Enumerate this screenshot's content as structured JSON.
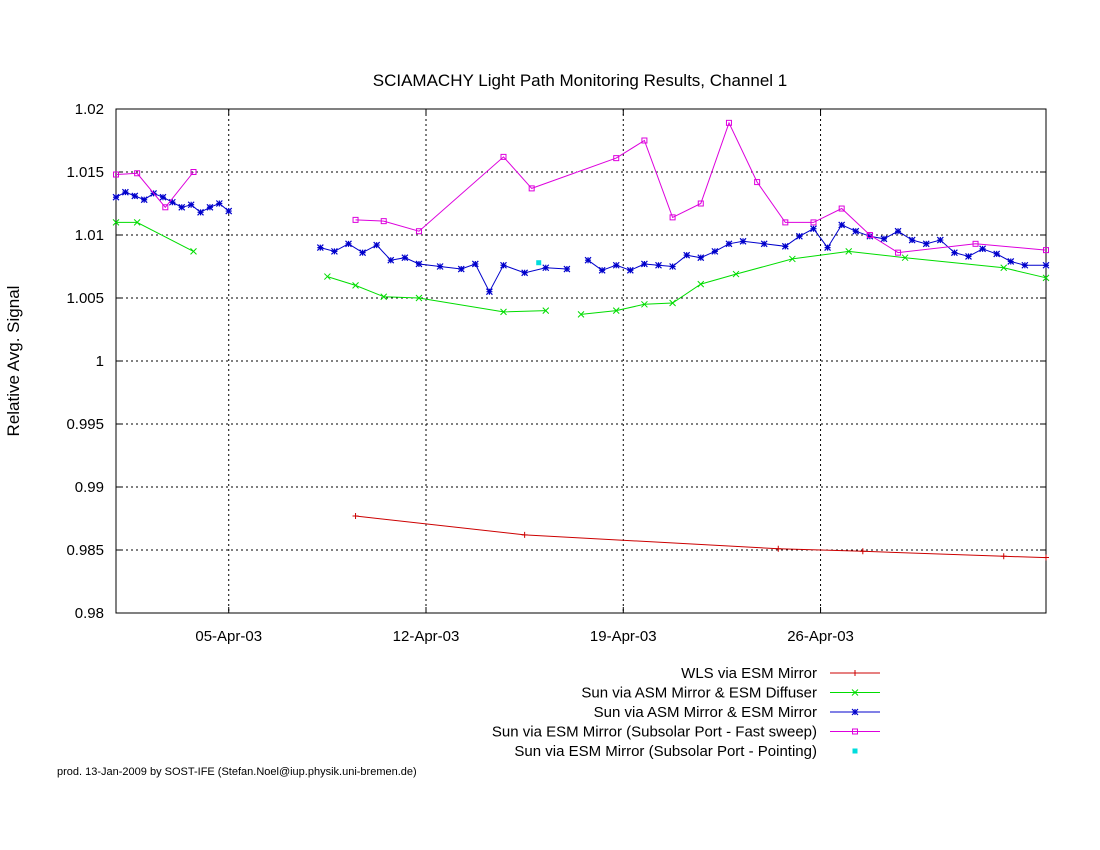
{
  "chart_data": {
    "type": "line",
    "title": "SCIAMACHY Light Path Monitoring Results, Channel 1",
    "xlabel": "",
    "ylabel": "Relative Avg. Signal",
    "x_axis": "date (year 2003)",
    "xlim": [
      "2003-04-01",
      "2003-05-04"
    ],
    "ylim": [
      0.98,
      1.02
    ],
    "y_ticks": [
      0.98,
      0.985,
      0.99,
      0.995,
      1,
      1.005,
      1.01,
      1.015,
      1.02
    ],
    "y_tick_labels": [
      "0.98",
      "0.985",
      "0.99",
      "0.995",
      "1",
      "1.005",
      "1.01",
      "1.015",
      "1.02"
    ],
    "x_ticks": [
      "2003-04-05",
      "2003-04-12",
      "2003-04-19",
      "2003-04-26"
    ],
    "x_tick_labels": [
      "05-Apr-03",
      "12-Apr-03",
      "19-Apr-03",
      "26-Apr-03"
    ],
    "grid": true,
    "legend_position": "below plot, right-aligned",
    "series": [
      {
        "name": "WLS via ESM Mirror",
        "color": "#cc0000",
        "marker": "plus",
        "segments": [
          [
            [
              "2003-04-09T12:00",
              0.9877
            ],
            [
              "2003-04-15T12:00",
              0.9862
            ],
            [
              "2003-04-24T12:00",
              0.9851
            ],
            [
              "2003-04-27T12:00",
              0.9849
            ],
            [
              "2003-05-02T12:00",
              0.9845
            ],
            [
              "2003-05-04T00:00",
              0.9844
            ]
          ]
        ]
      },
      {
        "name": "Sun via ASM Mirror & ESM Diffuser",
        "color": "#00dd00",
        "marker": "x",
        "segments": [
          [
            [
              "2003-04-01T00:00",
              1.011
            ],
            [
              "2003-04-01T18:00",
              1.011
            ],
            [
              "2003-04-03T18:00",
              1.0087
            ]
          ],
          [
            [
              "2003-04-08T12:00",
              1.0067
            ],
            [
              "2003-04-09T12:00",
              1.006
            ],
            [
              "2003-04-10T12:00",
              1.0051
            ],
            [
              "2003-04-11T18:00",
              1.005
            ],
            [
              "2003-04-14T18:00",
              1.0039
            ],
            [
              "2003-04-16T06:00",
              1.004
            ]
          ],
          [
            [
              "2003-04-17T12:00",
              1.0037
            ],
            [
              "2003-04-18T18:00",
              1.004
            ],
            [
              "2003-04-19T18:00",
              1.0045
            ],
            [
              "2003-04-20T18:00",
              1.0046
            ],
            [
              "2003-04-21T18:00",
              1.0061
            ],
            [
              "2003-04-23T00:00",
              1.0069
            ],
            [
              "2003-04-25T00:00",
              1.0081
            ],
            [
              "2003-04-27T00:00",
              1.0087
            ],
            [
              "2003-04-29T00:00",
              1.0082
            ],
            [
              "2003-05-02T12:00",
              1.0074
            ],
            [
              "2003-05-04T00:00",
              1.0066
            ]
          ]
        ]
      },
      {
        "name": "Sun via ASM Mirror & ESM Mirror",
        "color": "#0000cc",
        "marker": "star",
        "segments": [
          [
            [
              "2003-04-01T00:00",
              1.013
            ],
            [
              "2003-04-01T08:00",
              1.0134
            ],
            [
              "2003-04-01T16:00",
              1.0131
            ],
            [
              "2003-04-02T00:00",
              1.0128
            ],
            [
              "2003-04-02T08:00",
              1.0133
            ],
            [
              "2003-04-02T16:00",
              1.013
            ],
            [
              "2003-04-03T00:00",
              1.0126
            ],
            [
              "2003-04-03T08:00",
              1.0122
            ],
            [
              "2003-04-03T16:00",
              1.0124
            ],
            [
              "2003-04-04T00:00",
              1.0118
            ],
            [
              "2003-04-04T08:00",
              1.0122
            ],
            [
              "2003-04-04T16:00",
              1.0125
            ],
            [
              "2003-04-05T00:00",
              1.0119
            ]
          ],
          [
            [
              "2003-04-08T06:00",
              1.009
            ],
            [
              "2003-04-08T18:00",
              1.0087
            ],
            [
              "2003-04-09T06:00",
              1.0093
            ],
            [
              "2003-04-09T18:00",
              1.0086
            ],
            [
              "2003-04-10T06:00",
              1.0092
            ],
            [
              "2003-04-10T18:00",
              1.008
            ],
            [
              "2003-04-11T06:00",
              1.0082
            ],
            [
              "2003-04-11T18:00",
              1.0077
            ],
            [
              "2003-04-12T12:00",
              1.0075
            ],
            [
              "2003-04-13T06:00",
              1.0073
            ],
            [
              "2003-04-13T18:00",
              1.0077
            ],
            [
              "2003-04-14T06:00",
              1.0055
            ],
            [
              "2003-04-14T18:00",
              1.0076
            ],
            [
              "2003-04-15T12:00",
              1.007
            ],
            [
              "2003-04-16T06:00",
              1.0074
            ],
            [
              "2003-04-17T00:00",
              1.0073
            ]
          ],
          [
            [
              "2003-04-17T18:00",
              1.008
            ],
            [
              "2003-04-18T06:00",
              1.0072
            ],
            [
              "2003-04-18T18:00",
              1.0076
            ],
            [
              "2003-04-19T06:00",
              1.0072
            ],
            [
              "2003-04-19T18:00",
              1.0077
            ],
            [
              "2003-04-20T06:00",
              1.0076
            ],
            [
              "2003-04-20T18:00",
              1.0075
            ],
            [
              "2003-04-21T06:00",
              1.0084
            ],
            [
              "2003-04-21T18:00",
              1.0082
            ],
            [
              "2003-04-22T06:00",
              1.0087
            ],
            [
              "2003-04-22T18:00",
              1.0093
            ],
            [
              "2003-04-23T06:00",
              1.0095
            ],
            [
              "2003-04-24T00:00",
              1.0093
            ],
            [
              "2003-04-24T18:00",
              1.0091
            ],
            [
              "2003-04-25T06:00",
              1.0099
            ],
            [
              "2003-04-25T18:00",
              1.0105
            ],
            [
              "2003-04-26T06:00",
              1.009
            ],
            [
              "2003-04-26T18:00",
              1.0108
            ],
            [
              "2003-04-27T06:00",
              1.0103
            ],
            [
              "2003-04-27T18:00",
              1.0099
            ],
            [
              "2003-04-28T06:00",
              1.0097
            ],
            [
              "2003-04-28T18:00",
              1.0103
            ],
            [
              "2003-04-29T06:00",
              1.0096
            ],
            [
              "2003-04-29T18:00",
              1.0093
            ],
            [
              "2003-04-30T06:00",
              1.0096
            ],
            [
              "2003-04-30T18:00",
              1.0086
            ],
            [
              "2003-05-01T06:00",
              1.0083
            ],
            [
              "2003-05-01T18:00",
              1.0089
            ],
            [
              "2003-05-02T06:00",
              1.0085
            ],
            [
              "2003-05-02T18:00",
              1.0079
            ],
            [
              "2003-05-03T06:00",
              1.0076
            ],
            [
              "2003-05-04T00:00",
              1.0076
            ]
          ]
        ]
      },
      {
        "name": "Sun via ESM Mirror (Subsolar Port - Fast sweep)",
        "color": "#dd00dd",
        "marker": "open-square",
        "segments": [
          [
            [
              "2003-04-01T00:00",
              1.0148
            ],
            [
              "2003-04-01T18:00",
              1.0149
            ],
            [
              "2003-04-02T18:00",
              1.0122
            ],
            [
              "2003-04-03T18:00",
              1.015
            ]
          ],
          [
            [
              "2003-04-09T12:00",
              1.0112
            ],
            [
              "2003-04-10T12:00",
              1.0111
            ],
            [
              "2003-04-11T18:00",
              1.0103
            ],
            [
              "2003-04-14T18:00",
              1.0162
            ],
            [
              "2003-04-15T18:00",
              1.0137
            ],
            [
              "2003-04-18T18:00",
              1.0161
            ],
            [
              "2003-04-19T18:00",
              1.0175
            ],
            [
              "2003-04-20T18:00",
              1.0114
            ],
            [
              "2003-04-21T18:00",
              1.0125
            ],
            [
              "2003-04-22T18:00",
              1.0189
            ],
            [
              "2003-04-23T18:00",
              1.0142
            ],
            [
              "2003-04-24T18:00",
              1.011
            ],
            [
              "2003-04-25T18:00",
              1.011
            ],
            [
              "2003-04-26T18:00",
              1.0121
            ],
            [
              "2003-04-27T18:00",
              1.01
            ],
            [
              "2003-04-28T18:00",
              1.0086
            ],
            [
              "2003-05-01T12:00",
              1.0093
            ],
            [
              "2003-05-04T00:00",
              1.0088
            ]
          ]
        ]
      },
      {
        "name": "Sun via ESM Mirror (Subsolar Port - Pointing)",
        "color": "#00dddd",
        "marker": "filled-square",
        "segments": [
          [
            [
              "2003-04-16T00:00",
              1.0078
            ]
          ]
        ]
      }
    ]
  },
  "footer_text": "prod. 13-Jan-2009 by SOST-IFE (Stefan.Noel@iup.physik.uni-bremen.de)"
}
